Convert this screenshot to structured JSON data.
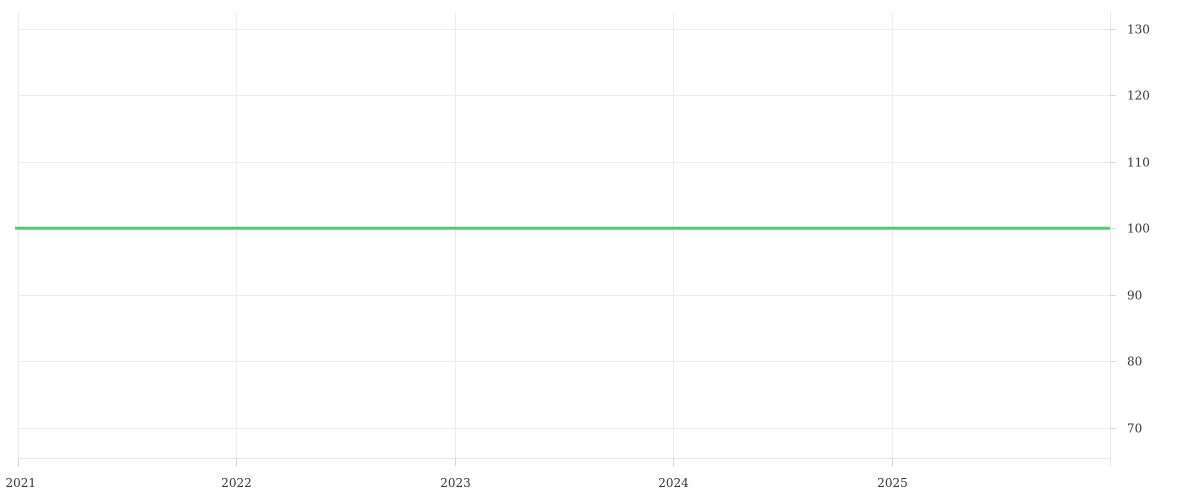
{
  "chart_data": {
    "type": "line",
    "title": "",
    "xlabel": "",
    "ylabel": "",
    "x_axis": {
      "type": "date",
      "range": [
        "2021-01-01",
        "2025-12-31"
      ],
      "ticks": [
        "2021",
        "2022",
        "2023",
        "2024",
        "2025"
      ]
    },
    "y_axis": {
      "position": "right",
      "range": [
        65.5,
        132.5
      ],
      "ticks": [
        70,
        80,
        90,
        100,
        110,
        120,
        130
      ]
    },
    "grid": true,
    "legend": "none",
    "series": [
      {
        "color": "#5bc57a",
        "points": [
          {
            "x": "2021-01-01",
            "y": 100
          },
          {
            "x": "2025-12-31",
            "y": 100
          }
        ]
      }
    ]
  }
}
